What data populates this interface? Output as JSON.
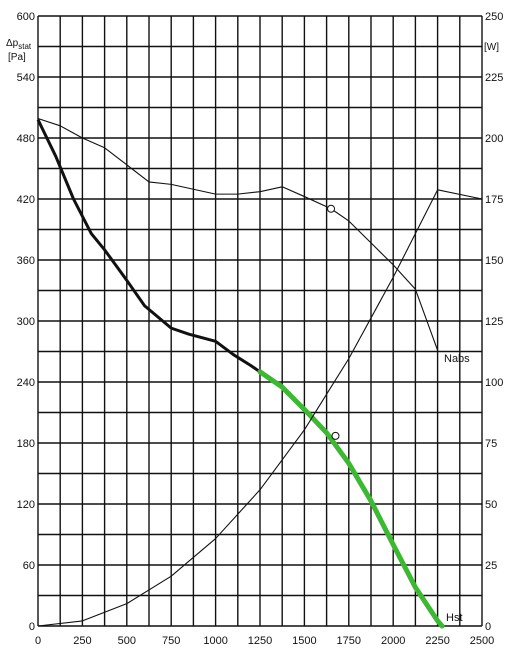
{
  "chart_data": {
    "type": "line",
    "y_left_label": {
      "symbol": "Δp",
      "subscript": "stat",
      "unit": "[Pa]"
    },
    "y_right_label": {
      "unit": "[W]"
    },
    "x_ticks": [
      "0",
      "250",
      "500",
      "750",
      "1000",
      "1250",
      "1500",
      "1750",
      "2000",
      "2250",
      "2500"
    ],
    "y_left_ticks": [
      "0",
      "60",
      "120",
      "180",
      "240",
      "300",
      "360",
      "420",
      "480",
      "540",
      "600"
    ],
    "y_right_ticks": [
      "0",
      "25",
      "50",
      "75",
      "100",
      "125",
      "150",
      "175",
      "200",
      "225",
      "250"
    ],
    "x_range": [
      0,
      2500
    ],
    "y_left_range": [
      0,
      600
    ],
    "y_right_range": [
      0,
      250
    ],
    "grid": true,
    "series": [
      {
        "name": "Hst",
        "axis": "left",
        "color": "#111111",
        "highlight_color": "#3cb832",
        "highlight_from_x": 1250,
        "x": [
          0,
          100,
          200,
          300,
          375,
          500,
          600,
          750,
          850,
          1000,
          1100,
          1200,
          1250,
          1375,
          1500,
          1625,
          1750,
          1875,
          2000,
          2125,
          2250,
          2275
        ],
        "y": [
          498,
          462,
          420,
          386,
          370,
          340,
          315,
          293,
          287,
          280,
          267,
          256,
          250,
          235,
          213,
          190,
          160,
          123,
          80,
          38,
          5,
          0
        ]
      },
      {
        "name": "Nabs",
        "axis": "right",
        "color": "#111111",
        "x": [
          0,
          125,
          250,
          375,
          500,
          625,
          750,
          875,
          1000,
          1125,
          1250,
          1375,
          1500,
          1650,
          1750,
          1875,
          2000,
          2125,
          2250
        ],
        "y": [
          208,
          205,
          200,
          196,
          189,
          182,
          181,
          179,
          177,
          177,
          178,
          180,
          176,
          171,
          166,
          157,
          148,
          138,
          113
        ]
      },
      {
        "name": "",
        "axis": "left",
        "color": "#111111",
        "x": [
          0,
          250,
          500,
          750,
          1000,
          1250,
          1500,
          1750,
          2000,
          2250,
          2500
        ],
        "y": [
          0,
          5,
          22,
          49,
          86,
          134,
          193,
          263,
          343,
          429,
          420
        ]
      }
    ],
    "markers": [
      {
        "x": 1650,
        "y": 171,
        "axis": "right"
      },
      {
        "x": 1675,
        "y": 187,
        "axis": "left"
      }
    ]
  }
}
